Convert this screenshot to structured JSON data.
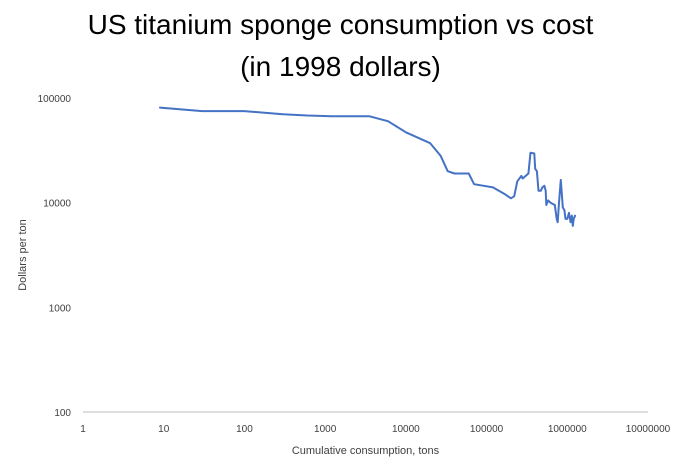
{
  "chart_data": {
    "type": "line",
    "title_lines": [
      "US titanium sponge consumption vs cost",
      "(in 1998 dollars)"
    ],
    "xlabel": "Cumulative consumption, tons",
    "ylabel": "Dollars per ton",
    "xscale": "log",
    "yscale": "log",
    "xlim": [
      1,
      10000000
    ],
    "ylim": [
      100,
      100000
    ],
    "x_tick_labels": [
      "1",
      "10",
      "100",
      "1000",
      "10000",
      "100000",
      "1000000",
      "10000000"
    ],
    "y_tick_labels": [
      "100",
      "1000",
      "10000",
      "100000"
    ],
    "grid": false,
    "legend": "none",
    "series_color": "#4472c4",
    "series": [
      {
        "points": [
          [
            9,
            81000
          ],
          [
            30,
            75000
          ],
          [
            100,
            75000
          ],
          [
            300,
            70000
          ],
          [
            600,
            68000
          ],
          [
            1200,
            67000
          ],
          [
            3500,
            67000
          ],
          [
            6000,
            60000
          ],
          [
            10000,
            47000
          ],
          [
            20000,
            37000
          ],
          [
            27000,
            28000
          ],
          [
            33000,
            20000
          ],
          [
            40000,
            19000
          ],
          [
            60000,
            19000
          ],
          [
            70000,
            15000
          ],
          [
            120000,
            14000
          ],
          [
            170000,
            12000
          ],
          [
            200000,
            11000
          ],
          [
            220000,
            11500
          ],
          [
            240000,
            16000
          ],
          [
            270000,
            18000
          ],
          [
            280000,
            17000
          ],
          [
            330000,
            19000
          ],
          [
            350000,
            30000
          ],
          [
            390000,
            29500
          ],
          [
            400000,
            21000
          ],
          [
            420000,
            20000
          ],
          [
            440000,
            13000
          ],
          [
            470000,
            13000
          ],
          [
            490000,
            14000
          ],
          [
            520000,
            14500
          ],
          [
            540000,
            13000
          ],
          [
            550000,
            9500
          ],
          [
            580000,
            10500
          ],
          [
            620000,
            10000
          ],
          [
            700000,
            9500
          ],
          [
            740000,
            7000
          ],
          [
            760000,
            6500
          ],
          [
            790000,
            10000
          ],
          [
            830000,
            16500
          ],
          [
            850000,
            13000
          ],
          [
            880000,
            9000
          ],
          [
            920000,
            8500
          ],
          [
            950000,
            7000
          ],
          [
            1000000,
            7000
          ],
          [
            1050000,
            8000
          ],
          [
            1100000,
            6500
          ],
          [
            1140000,
            7500
          ],
          [
            1170000,
            6000
          ],
          [
            1200000,
            7000
          ],
          [
            1250000,
            7500
          ]
        ]
      }
    ]
  }
}
